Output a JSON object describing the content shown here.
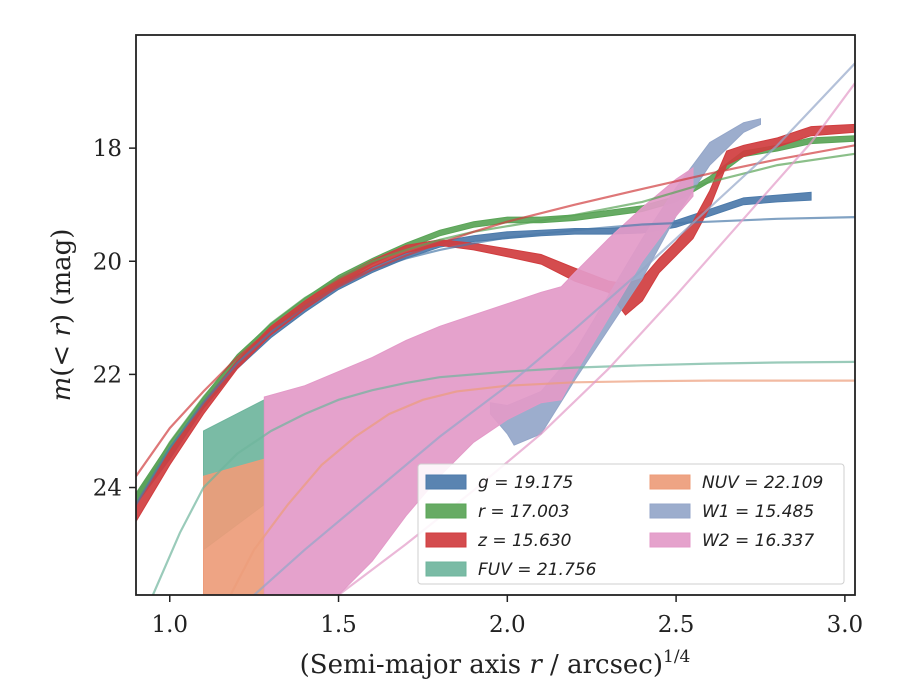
{
  "chart_data": {
    "type": "line",
    "xlabel": "(Semi-major axis r / arcsec)1/4",
    "ylabel": "m(< r) (mag)",
    "xlim": [
      0.9,
      3.03
    ],
    "ylim": [
      25.9,
      16.0
    ],
    "y_inverted": true,
    "grid": false,
    "legend_position": "lower-right",
    "xticks": [
      1.0,
      1.5,
      2.0,
      2.5,
      3.0
    ],
    "xtick_labels": [
      "1.0",
      "1.5",
      "2.0",
      "2.5",
      "3.0"
    ],
    "yticks": [
      18,
      20,
      22,
      24
    ],
    "ytick_labels": [
      "18",
      "20",
      "22",
      "24"
    ],
    "legend_columns": 2,
    "series": [
      {
        "name": "g = 19.175",
        "legend_label": "g = 19.175",
        "color": "#4c7aaa",
        "band": [
          [
            0.9,
            24.3,
            24.1
          ],
          [
            1.0,
            23.5,
            23.3
          ],
          [
            1.1,
            22.6,
            22.45
          ],
          [
            1.2,
            21.9,
            21.75
          ],
          [
            1.3,
            21.35,
            21.2
          ],
          [
            1.4,
            20.9,
            20.75
          ],
          [
            1.5,
            20.5,
            20.38
          ],
          [
            1.6,
            20.2,
            20.1
          ],
          [
            1.7,
            19.95,
            19.85
          ],
          [
            1.8,
            19.75,
            19.65
          ],
          [
            1.9,
            19.65,
            19.55
          ],
          [
            2.0,
            19.6,
            19.48
          ],
          [
            2.1,
            19.55,
            19.45
          ],
          [
            2.2,
            19.52,
            19.42
          ],
          [
            2.3,
            19.52,
            19.42
          ],
          [
            2.4,
            19.5,
            19.38
          ],
          [
            2.5,
            19.4,
            19.28
          ],
          [
            2.6,
            19.2,
            19.08
          ],
          [
            2.7,
            19.0,
            18.88
          ],
          [
            2.8,
            18.95,
            18.83
          ],
          [
            2.9,
            18.92,
            18.78
          ]
        ],
        "model": [
          [
            0.9,
            24.3
          ],
          [
            1.0,
            23.3
          ],
          [
            1.1,
            22.5
          ],
          [
            1.2,
            21.8
          ],
          [
            1.3,
            21.25
          ],
          [
            1.4,
            20.8
          ],
          [
            1.5,
            20.45
          ],
          [
            1.6,
            20.15
          ],
          [
            1.7,
            19.95
          ],
          [
            1.8,
            19.8
          ],
          [
            1.9,
            19.68
          ],
          [
            2.0,
            19.58
          ],
          [
            2.2,
            19.45
          ],
          [
            2.4,
            19.35
          ],
          [
            2.6,
            19.3
          ],
          [
            2.8,
            19.25
          ],
          [
            3.03,
            19.22
          ]
        ]
      },
      {
        "name": "r = 17.003",
        "legend_label": "r = 17.003",
        "color": "#5aa457",
        "band": [
          [
            0.9,
            24.3,
            24.1
          ],
          [
            1.0,
            23.4,
            23.2
          ],
          [
            1.1,
            22.55,
            22.4
          ],
          [
            1.2,
            21.8,
            21.65
          ],
          [
            1.3,
            21.25,
            21.1
          ],
          [
            1.4,
            20.8,
            20.65
          ],
          [
            1.5,
            20.4,
            20.25
          ],
          [
            1.6,
            20.05,
            19.95
          ],
          [
            1.7,
            19.78,
            19.68
          ],
          [
            1.8,
            19.55,
            19.45
          ],
          [
            1.9,
            19.4,
            19.3
          ],
          [
            2.0,
            19.32,
            19.22
          ],
          [
            2.1,
            19.32,
            19.22
          ],
          [
            2.2,
            19.28,
            19.18
          ],
          [
            2.3,
            19.2,
            19.1
          ],
          [
            2.4,
            19.12,
            19.02
          ],
          [
            2.5,
            18.95,
            18.85
          ],
          [
            2.6,
            18.6,
            18.5
          ],
          [
            2.7,
            18.15,
            18.05
          ],
          [
            2.8,
            18.05,
            17.95
          ],
          [
            2.9,
            17.92,
            17.82
          ],
          [
            3.03,
            17.88,
            17.78
          ]
        ],
        "model": [
          [
            0.9,
            24.2
          ],
          [
            1.0,
            23.2
          ],
          [
            1.1,
            22.4
          ],
          [
            1.2,
            21.7
          ],
          [
            1.3,
            21.1
          ],
          [
            1.4,
            20.65
          ],
          [
            1.5,
            20.3
          ],
          [
            1.6,
            20.0
          ],
          [
            1.7,
            19.8
          ],
          [
            1.8,
            19.62
          ],
          [
            1.9,
            19.48
          ],
          [
            2.0,
            19.38
          ],
          [
            2.2,
            19.18
          ],
          [
            2.4,
            18.95
          ],
          [
            2.6,
            18.6
          ],
          [
            2.8,
            18.3
          ],
          [
            3.03,
            18.1
          ]
        ]
      },
      {
        "name": "z = 15.630",
        "legend_label": "z = 15.630",
        "color": "#d03d3f",
        "band": [
          [
            0.9,
            24.6,
            24.3
          ],
          [
            1.0,
            23.6,
            23.35
          ],
          [
            1.1,
            22.7,
            22.5
          ],
          [
            1.2,
            21.9,
            21.75
          ],
          [
            1.3,
            21.3,
            21.15
          ],
          [
            1.4,
            20.85,
            20.7
          ],
          [
            1.5,
            20.45,
            20.3
          ],
          [
            1.6,
            20.1,
            19.98
          ],
          [
            1.7,
            19.85,
            19.72
          ],
          [
            1.8,
            19.72,
            19.62
          ],
          [
            1.9,
            19.8,
            19.68
          ],
          [
            2.0,
            19.92,
            19.78
          ],
          [
            2.1,
            20.05,
            19.88
          ],
          [
            2.2,
            20.35,
            20.12
          ],
          [
            2.3,
            20.55,
            20.35
          ],
          [
            2.35,
            20.95,
            20.4
          ],
          [
            2.4,
            20.7,
            20.3
          ],
          [
            2.45,
            20.2,
            19.95
          ],
          [
            2.5,
            19.9,
            19.65
          ],
          [
            2.55,
            19.6,
            19.3
          ],
          [
            2.6,
            19.05,
            18.75
          ],
          [
            2.65,
            18.3,
            18.05
          ],
          [
            2.7,
            18.15,
            17.95
          ],
          [
            2.8,
            17.98,
            17.82
          ],
          [
            2.9,
            17.78,
            17.62
          ],
          [
            3.03,
            17.72,
            17.58
          ]
        ],
        "model": [
          [
            0.9,
            23.8
          ],
          [
            1.0,
            22.95
          ],
          [
            1.1,
            22.3
          ],
          [
            1.2,
            21.7
          ],
          [
            1.3,
            21.2
          ],
          [
            1.4,
            20.8
          ],
          [
            1.5,
            20.45
          ],
          [
            1.6,
            20.15
          ],
          [
            1.7,
            19.9
          ],
          [
            1.8,
            19.68
          ],
          [
            1.9,
            19.48
          ],
          [
            2.0,
            19.3
          ],
          [
            2.2,
            19.0
          ],
          [
            2.4,
            18.72
          ],
          [
            2.6,
            18.45
          ],
          [
            2.8,
            18.2
          ],
          [
            3.03,
            17.95
          ]
        ]
      },
      {
        "name": "FUV = 21.756",
        "legend_label": "FUV = 21.756",
        "color": "#6fb59d",
        "band": [
          [
            1.1,
            25.1,
            23.0
          ],
          [
            1.28,
            24.3,
            22.45
          ]
        ],
        "model": [
          [
            0.95,
            25.9
          ],
          [
            1.03,
            24.8
          ],
          [
            1.1,
            24.0
          ],
          [
            1.2,
            23.4
          ],
          [
            1.3,
            23.0
          ],
          [
            1.4,
            22.7
          ],
          [
            1.5,
            22.45
          ],
          [
            1.6,
            22.28
          ],
          [
            1.7,
            22.15
          ],
          [
            1.8,
            22.05
          ],
          [
            2.0,
            21.95
          ],
          [
            2.2,
            21.88
          ],
          [
            2.4,
            21.84
          ],
          [
            2.6,
            21.81
          ],
          [
            2.8,
            21.79
          ],
          [
            3.03,
            21.78
          ]
        ]
      },
      {
        "name": "NUV = 22.109",
        "legend_label": "NUV = 22.109",
        "color": "#ed9c7a",
        "band": [
          [
            1.1,
            25.9,
            23.8
          ],
          [
            1.28,
            25.9,
            23.5
          ]
        ],
        "model": [
          [
            1.18,
            25.9
          ],
          [
            1.25,
            25.1
          ],
          [
            1.35,
            24.3
          ],
          [
            1.45,
            23.6
          ],
          [
            1.55,
            23.1
          ],
          [
            1.65,
            22.7
          ],
          [
            1.75,
            22.45
          ],
          [
            1.85,
            22.3
          ],
          [
            2.0,
            22.2
          ],
          [
            2.2,
            22.14
          ],
          [
            2.4,
            22.12
          ],
          [
            2.6,
            22.11
          ],
          [
            2.8,
            22.11
          ],
          [
            3.03,
            22.11
          ]
        ]
      },
      {
        "name": "W1 = 15.485",
        "legend_label": "W1 = 15.485",
        "color": "#94a6c9",
        "band": [
          [
            1.95,
            22.7,
            22.5
          ],
          [
            2.0,
            23.05,
            22.55
          ],
          [
            2.02,
            23.25,
            22.5
          ],
          [
            2.1,
            23.05,
            22.3
          ],
          [
            2.2,
            22.1,
            21.6
          ],
          [
            2.3,
            21.2,
            20.6
          ],
          [
            2.4,
            20.3,
            19.6
          ],
          [
            2.5,
            19.2,
            18.7
          ],
          [
            2.6,
            18.3,
            17.9
          ],
          [
            2.7,
            17.72,
            17.55
          ],
          [
            2.75,
            17.58,
            17.48
          ]
        ],
        "model": [
          [
            1.25,
            25.9
          ],
          [
            1.4,
            25.1
          ],
          [
            1.6,
            24.1
          ],
          [
            1.8,
            23.1
          ],
          [
            2.0,
            22.2
          ],
          [
            2.2,
            21.2
          ],
          [
            2.4,
            20.15
          ],
          [
            2.6,
            19.05
          ],
          [
            2.8,
            17.95
          ],
          [
            3.03,
            16.5
          ]
        ]
      },
      {
        "name": "W2 = 16.337",
        "legend_label": "W2 = 16.337",
        "color": "#e39ac8",
        "band": [
          [
            1.28,
            25.9,
            22.4
          ],
          [
            1.4,
            25.9,
            22.2
          ],
          [
            1.5,
            25.9,
            21.95
          ],
          [
            1.6,
            25.3,
            21.7
          ],
          [
            1.7,
            24.5,
            21.4
          ],
          [
            1.8,
            23.8,
            21.15
          ],
          [
            1.9,
            23.2,
            20.95
          ],
          [
            2.0,
            22.8,
            20.75
          ],
          [
            2.1,
            22.5,
            20.55
          ],
          [
            2.16,
            22.45,
            20.45
          ],
          [
            2.2,
            22.0,
            20.2
          ],
          [
            2.3,
            21.0,
            19.6
          ],
          [
            2.4,
            20.0,
            19.05
          ],
          [
            2.5,
            19.2,
            18.55
          ],
          [
            2.55,
            18.85,
            18.35
          ]
        ],
        "model": [
          [
            1.5,
            25.9
          ],
          [
            1.7,
            25.0
          ],
          [
            1.9,
            24.05
          ],
          [
            2.1,
            23.05
          ],
          [
            2.3,
            21.9
          ],
          [
            2.5,
            20.6
          ],
          [
            2.7,
            19.25
          ],
          [
            2.9,
            17.9
          ],
          [
            3.03,
            16.85
          ]
        ]
      }
    ]
  }
}
